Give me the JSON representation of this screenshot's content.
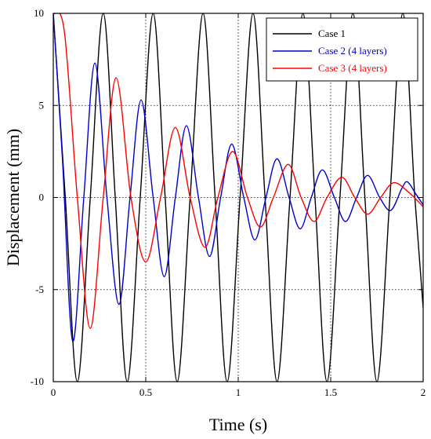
{
  "chart_data": {
    "type": "line",
    "xlabel": "Time (s)",
    "ylabel": "Displacement (mm)",
    "xlim": [
      0,
      2
    ],
    "ylim": [
      -10,
      10
    ],
    "x_ticks": [
      0,
      0.5,
      1,
      1.5,
      2
    ],
    "x_tick_labels": [
      "0",
      "0.5",
      "1",
      "1.5",
      "2"
    ],
    "y_ticks": [
      -10,
      -5,
      0,
      5,
      10
    ],
    "y_tick_labels": [
      "-10",
      "-5",
      "0",
      "5",
      "10"
    ],
    "grid": true,
    "legend_position": "top-right",
    "series": [
      {
        "name": "Case 1",
        "color": "#000000",
        "points": [
          [
            0,
            10
          ],
          [
            0.065,
            0
          ],
          [
            0.13,
            -10
          ],
          [
            0.2,
            0
          ],
          [
            0.27,
            10
          ],
          [
            0.335,
            0
          ],
          [
            0.4,
            -10
          ],
          [
            0.47,
            0
          ],
          [
            0.54,
            10
          ],
          [
            0.605,
            0
          ],
          [
            0.67,
            -10
          ],
          [
            0.74,
            0
          ],
          [
            0.81,
            10
          ],
          [
            0.875,
            0
          ],
          [
            0.94,
            -10
          ],
          [
            1.01,
            0
          ],
          [
            1.08,
            10
          ],
          [
            1.145,
            0
          ],
          [
            1.21,
            -10
          ],
          [
            1.28,
            0
          ],
          [
            1.35,
            10
          ],
          [
            1.415,
            0
          ],
          [
            1.48,
            -10
          ],
          [
            1.55,
            0
          ],
          [
            1.62,
            10
          ],
          [
            1.685,
            0
          ],
          [
            1.75,
            -10
          ],
          [
            1.82,
            0
          ],
          [
            1.89,
            10
          ],
          [
            1.955,
            0
          ],
          [
            2.0,
            -6
          ]
        ]
      },
      {
        "name": "Case 2 (4 layers)",
        "color": "#0000cc",
        "points": [
          [
            0,
            10
          ],
          [
            0.05,
            2
          ],
          [
            0.105,
            -7.8
          ],
          [
            0.165,
            0
          ],
          [
            0.225,
            7.3
          ],
          [
            0.29,
            0
          ],
          [
            0.355,
            -5.8
          ],
          [
            0.415,
            0
          ],
          [
            0.475,
            5.3
          ],
          [
            0.54,
            0
          ],
          [
            0.6,
            -4.3
          ],
          [
            0.66,
            0
          ],
          [
            0.72,
            3.9
          ],
          [
            0.785,
            0
          ],
          [
            0.845,
            -3.2
          ],
          [
            0.905,
            0
          ],
          [
            0.965,
            2.9
          ],
          [
            1.03,
            0
          ],
          [
            1.09,
            -2.3
          ],
          [
            1.15,
            0
          ],
          [
            1.21,
            2.1
          ],
          [
            1.275,
            0
          ],
          [
            1.335,
            -1.7
          ],
          [
            1.395,
            0
          ],
          [
            1.455,
            1.5
          ],
          [
            1.52,
            0
          ],
          [
            1.58,
            -1.3
          ],
          [
            1.64,
            0
          ],
          [
            1.7,
            1.2
          ],
          [
            1.765,
            0
          ],
          [
            1.825,
            -0.7
          ],
          [
            1.885,
            0.5
          ],
          [
            1.915,
            0.85
          ],
          [
            1.96,
            0.2
          ],
          [
            2.0,
            -0.4
          ]
        ]
      },
      {
        "name": "Case 3 (4 layers)",
        "color": "#ff0000",
        "points": [
          [
            0,
            10
          ],
          [
            0.06,
            9
          ],
          [
            0.13,
            0
          ],
          [
            0.2,
            -7.1
          ],
          [
            0.27,
            0
          ],
          [
            0.34,
            6.5
          ],
          [
            0.42,
            0
          ],
          [
            0.5,
            -3.5
          ],
          [
            0.58,
            0
          ],
          [
            0.66,
            3.8
          ],
          [
            0.74,
            0
          ],
          [
            0.82,
            -2.7
          ],
          [
            0.89,
            0
          ],
          [
            0.97,
            2.5
          ],
          [
            1.05,
            0
          ],
          [
            1.12,
            -1.6
          ],
          [
            1.19,
            0
          ],
          [
            1.27,
            1.8
          ],
          [
            1.34,
            0
          ],
          [
            1.41,
            -1.3
          ],
          [
            1.48,
            0
          ],
          [
            1.56,
            1.1
          ],
          [
            1.63,
            0
          ],
          [
            1.7,
            -0.9
          ],
          [
            1.77,
            0
          ],
          [
            1.84,
            0.8
          ],
          [
            1.92,
            0.3
          ],
          [
            2.0,
            -0.5
          ]
        ]
      }
    ]
  }
}
